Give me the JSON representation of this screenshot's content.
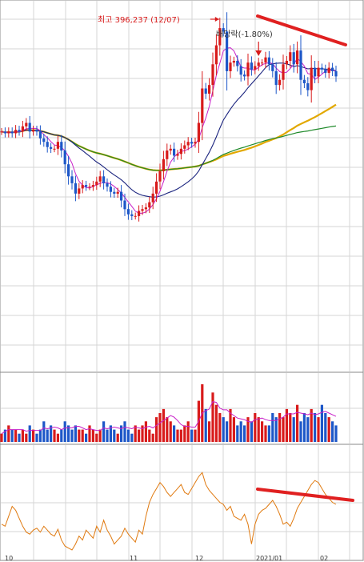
{
  "annotations": {
    "high_label": "최고 396,237 (12/07)",
    "dividend_label": "배당락(-1.80%)"
  },
  "colors": {
    "up": "#d81b1b",
    "down": "#1d57c8",
    "ma5": "#c81ec8",
    "ma20": "#1a237e",
    "ma60": "#e2a800",
    "ma120": "#1f8a2a",
    "oscillator": "#e07a10",
    "trendline": "#e02020",
    "grid": "#d6d6d6"
  },
  "chart_data": [
    {
      "type": "candlestick",
      "title": "",
      "ylabel": "",
      "xlabel": "",
      "x_tick_labels": [
        "10",
        "",
        "11",
        "12",
        "2021/01",
        "02"
      ],
      "grid": true,
      "series_lines": [
        "MA5",
        "MA20",
        "MA60",
        "MA120"
      ],
      "close": [
        333,
        332,
        333,
        332,
        334,
        333,
        336,
        338,
        333,
        334,
        333,
        329,
        327,
        324,
        323,
        323,
        327,
        322,
        314,
        307,
        303,
        297,
        300,
        302,
        301,
        301,
        302,
        304,
        307,
        303,
        301,
        298,
        297,
        298,
        293,
        288,
        285,
        284,
        284,
        287,
        288,
        289,
        292,
        297,
        304,
        310,
        317,
        322,
        323,
        319,
        320,
        323,
        325,
        327,
        326,
        327,
        338,
        358,
        355,
        360,
        372,
        383,
        393,
        391,
        368,
        373,
        374,
        371,
        366,
        365,
        373,
        369,
        371,
        373,
        373,
        376,
        372,
        368,
        360,
        363,
        372,
        374,
        379,
        372,
        380,
        363,
        361,
        357,
        370,
        365,
        370,
        369,
        367,
        370,
        368,
        365
      ],
      "max_high": 396.237,
      "max_high_date": "12/07",
      "events": [
        {
          "label": "배당락(-1.80%)"
        }
      ]
    },
    {
      "type": "bar",
      "name": "volume",
      "values": [
        2,
        3,
        4,
        3,
        3,
        2,
        3,
        2,
        4,
        3,
        2,
        3,
        5,
        3,
        4,
        3,
        2,
        3,
        5,
        4,
        3,
        4,
        3,
        3,
        2,
        4,
        3,
        2,
        3,
        5,
        3,
        4,
        3,
        2,
        4,
        5,
        3,
        2,
        4,
        3,
        4,
        5,
        3,
        2,
        6,
        7,
        8,
        6,
        5,
        4,
        3,
        3,
        4,
        5,
        3,
        3,
        10,
        14,
        8,
        5,
        12,
        9,
        7,
        6,
        5,
        8,
        6,
        4,
        5,
        4,
        6,
        5,
        7,
        6,
        5,
        4,
        4,
        7,
        6,
        7,
        6,
        8,
        7,
        6,
        9,
        5,
        7,
        6,
        8,
        7,
        6,
        9,
        7,
        6,
        5,
        4
      ]
    },
    {
      "type": "line",
      "name": "oscillator",
      "values": [
        30,
        28,
        38,
        48,
        44,
        36,
        28,
        22,
        20,
        24,
        26,
        22,
        28,
        24,
        20,
        18,
        25,
        14,
        8,
        6,
        4,
        10,
        18,
        14,
        24,
        20,
        16,
        28,
        22,
        34,
        24,
        18,
        10,
        14,
        18,
        26,
        20,
        16,
        12,
        24,
        20,
        38,
        52,
        60,
        66,
        72,
        68,
        62,
        58,
        62,
        66,
        70,
        62,
        60,
        66,
        72,
        78,
        82,
        70,
        64,
        60,
        56,
        52,
        50,
        44,
        48,
        38,
        36,
        34,
        40,
        30,
        10,
        30,
        40,
        44,
        46,
        50,
        54,
        48,
        40,
        30,
        32,
        28,
        36,
        46,
        52,
        58,
        64,
        70,
        74,
        72,
        66,
        60,
        56,
        52,
        50
      ]
    }
  ]
}
